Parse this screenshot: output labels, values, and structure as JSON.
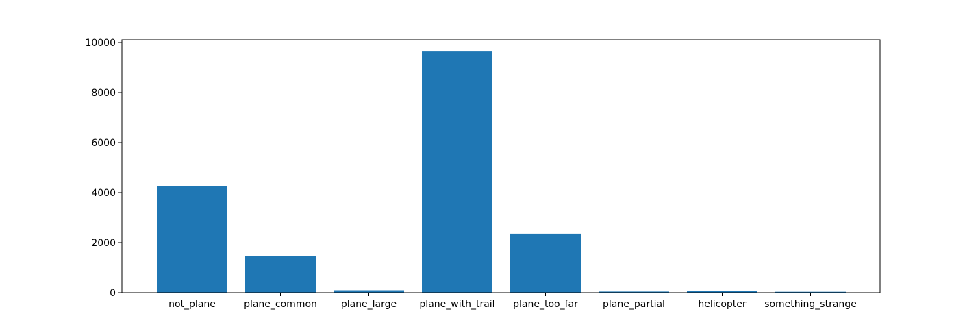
{
  "chart_data": {
    "type": "bar",
    "title": "",
    "xlabel": "",
    "ylabel": "",
    "categories": [
      "not_plane",
      "plane_common",
      "plane_large",
      "plane_with_trail",
      "plane_too_far",
      "plane_partial",
      "helicopter",
      "something_strange"
    ],
    "values": [
      4250,
      1460,
      95,
      9640,
      2360,
      45,
      60,
      35
    ],
    "ylim": [
      0,
      10000
    ],
    "yticks": [
      0,
      2000,
      4000,
      6000,
      8000,
      10000
    ],
    "grid": false,
    "legend": "none",
    "bar_color": "#1f77b4"
  }
}
